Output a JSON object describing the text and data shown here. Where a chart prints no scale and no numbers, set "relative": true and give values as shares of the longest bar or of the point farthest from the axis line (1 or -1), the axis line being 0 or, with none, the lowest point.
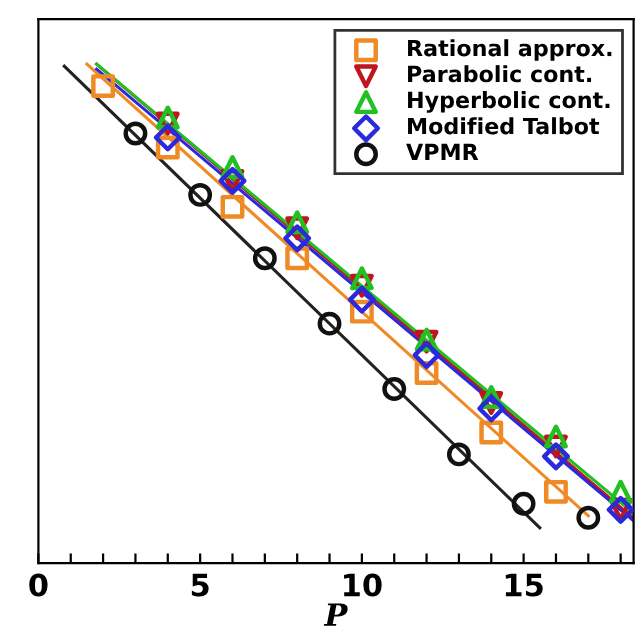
{
  "chart_data": {
    "type": "scatter",
    "xlabel": "P",
    "relative": true,
    "xlim": [
      0,
      18.4
    ],
    "xticks": [
      0,
      {
        "value": 1,
        "label": null
      },
      {
        "value": 2,
        "label": null
      },
      {
        "value": 3,
        "label": null
      },
      {
        "value": 4,
        "label": null
      },
      5,
      {
        "value": 6,
        "label": null
      },
      {
        "value": 7,
        "label": null
      },
      {
        "value": 8,
        "label": null
      },
      {
        "value": 9,
        "label": null
      },
      10,
      {
        "value": 11,
        "label": null
      },
      {
        "value": 12,
        "label": null
      },
      {
        "value": 13,
        "label": null
      },
      {
        "value": 14,
        "label": null
      },
      15,
      {
        "value": 16,
        "label": null
      },
      {
        "value": 17,
        "label": null
      },
      {
        "value": 18,
        "label": null
      }
    ],
    "legend": "top right",
    "grid": false,
    "series": [
      {
        "type": "line",
        "color": "#f08a24",
        "x": [
          1.5,
          17
        ],
        "values": [
          1.0,
          0.095
        ],
        "marker": "none"
      },
      {
        "type": "line",
        "color": "#c0141e",
        "x": [
          1.8,
          18.4
        ],
        "values": [
          1.0,
          0.09
        ],
        "marker": "none"
      },
      {
        "type": "line",
        "color": "#22c022",
        "x": [
          1.8,
          18.4
        ],
        "values": [
          1.0,
          0.1
        ],
        "marker": "none"
      },
      {
        "type": "line",
        "color": "#2a2adc",
        "x": [
          1.8,
          18.4
        ],
        "values": [
          0.99,
          0.085
        ],
        "marker": "none"
      },
      {
        "type": "line",
        "color": "#222222",
        "x": [
          0.8,
          15.5
        ],
        "values": [
          0.996,
          0.071
        ],
        "marker": "none"
      },
      {
        "name": "Rational approx.",
        "color": "#f08a24",
        "marker": "square",
        "x": [
          2,
          4,
          6,
          8,
          10,
          12,
          14,
          16
        ],
        "values": [
          0.956,
          0.833,
          0.714,
          0.611,
          0.504,
          0.381,
          0.262,
          0.143
        ]
      },
      {
        "name": "Parabolic cont.",
        "color": "#c0141e",
        "marker": "triangle_down",
        "x": [
          4,
          6,
          8,
          10,
          12,
          14,
          16,
          18
        ],
        "values": [
          0.881,
          0.766,
          0.671,
          0.556,
          0.444,
          0.321,
          0.234,
          0.107
        ]
      },
      {
        "name": "Hyperbolic cont.",
        "color": "#22c022",
        "marker": "triangle",
        "x": [
          4,
          6,
          8,
          10,
          12,
          14,
          16,
          18
        ],
        "values": [
          0.893,
          0.794,
          0.683,
          0.571,
          0.448,
          0.333,
          0.254,
          0.143
        ]
      },
      {
        "name": "Modified Talbot",
        "color": "#2a2adc",
        "marker": "diamond",
        "x": [
          4,
          6,
          8,
          10,
          12,
          14,
          16,
          18
        ],
        "values": [
          0.853,
          0.766,
          0.651,
          0.528,
          0.417,
          0.31,
          0.214,
          0.107
        ]
      },
      {
        "name": "VPMR",
        "color": "#111111",
        "marker": "circle",
        "x": [
          3,
          5,
          7,
          9,
          11,
          13,
          15,
          17
        ],
        "values": [
          0.861,
          0.738,
          0.611,
          0.48,
          0.349,
          0.218,
          0.119,
          0.091
        ]
      }
    ]
  }
}
